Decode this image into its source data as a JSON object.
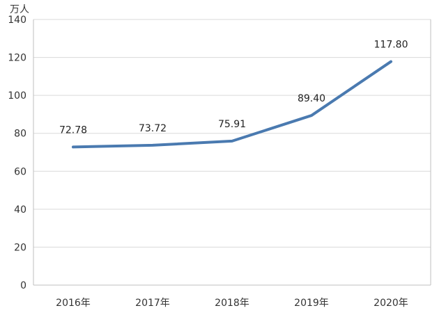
{
  "chart_data": {
    "type": "line",
    "ylabel": "万人",
    "categories": [
      "2016年",
      "2017年",
      "2018年",
      "2019年",
      "2020年"
    ],
    "series": [
      {
        "values": [
          72.78,
          73.72,
          75.91,
          89.4,
          117.8
        ]
      }
    ],
    "data_labels": [
      "72.78",
      "73.72",
      "75.91",
      "89.40",
      "117.80"
    ],
    "ylim": [
      0,
      140
    ],
    "yticks": [
      0,
      20,
      40,
      60,
      80,
      100,
      120,
      140
    ],
    "grid": true,
    "line_color": "#4a7ab0"
  }
}
